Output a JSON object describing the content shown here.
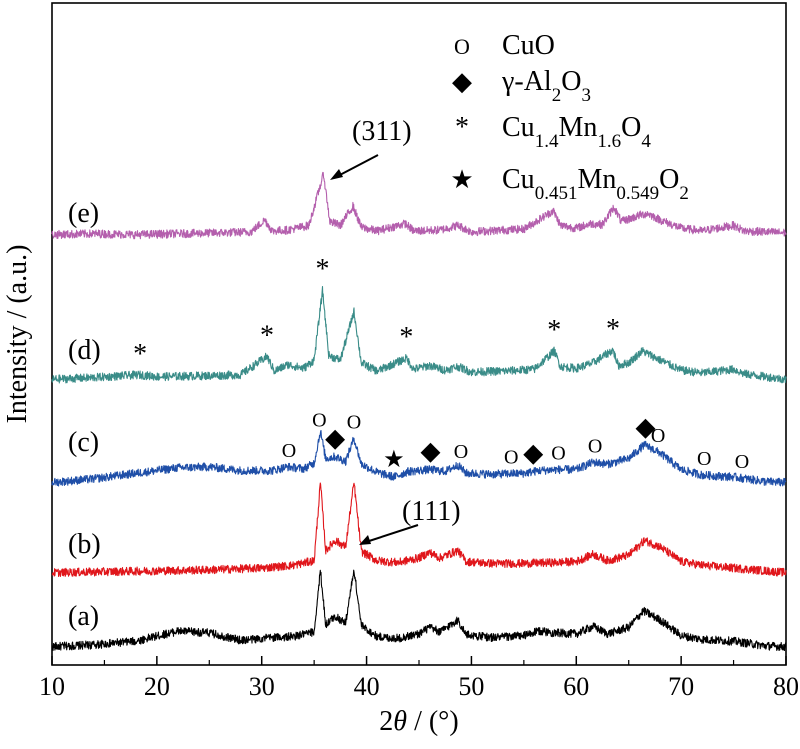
{
  "chart_data": {
    "type": "line",
    "xlabel": "2θ / (°)",
    "xlabel_parts": [
      "2",
      "θ",
      " / (°)"
    ],
    "ylabel": "Intensity / (a.u.)",
    "xlim": [
      10,
      80
    ],
    "x_ticks": [
      10,
      20,
      30,
      40,
      50,
      60,
      70,
      80
    ],
    "x_tick_labels": [
      "10",
      "20",
      "30",
      "40",
      "50",
      "60",
      "70",
      "80"
    ],
    "y_ticks_shown": false,
    "grid": false,
    "legend_position": "top-right",
    "colors": {
      "a": "#000000",
      "b": "#e0161b",
      "c": "#1f4fa8",
      "d": "#3a8c88",
      "e": "#b45fad"
    },
    "series": [
      {
        "name": "(a)",
        "baseline": 0.0,
        "points": [
          [
            10,
            0.9
          ],
          [
            14,
            1.1
          ],
          [
            18,
            1.5
          ],
          [
            22,
            2.6
          ],
          [
            25,
            2.4
          ],
          [
            28,
            1.6
          ],
          [
            31,
            1.9
          ],
          [
            33,
            2.0
          ],
          [
            35,
            2.5
          ],
          [
            35.6,
            9.2
          ],
          [
            36.1,
            3.3
          ],
          [
            37,
            4.2
          ],
          [
            38,
            3.5
          ],
          [
            38.8,
            9.3
          ],
          [
            39.5,
            3.2
          ],
          [
            41,
            2.0
          ],
          [
            43,
            1.8
          ],
          [
            45,
            2.3
          ],
          [
            46,
            3.0
          ],
          [
            47,
            2.5
          ],
          [
            48.7,
            3.8
          ],
          [
            49.5,
            2.2
          ],
          [
            52,
            1.9
          ],
          [
            55,
            2.1
          ],
          [
            56.5,
            2.6
          ],
          [
            58,
            2.4
          ],
          [
            60,
            2.3
          ],
          [
            61.6,
            3.1
          ],
          [
            63,
            2.3
          ],
          [
            65,
            3.0
          ],
          [
            66.4,
            4.8
          ],
          [
            68,
            3.8
          ],
          [
            70,
            2.1
          ],
          [
            72,
            1.7
          ],
          [
            75,
            1.5
          ],
          [
            78,
            1.0
          ],
          [
            80,
            0.9
          ]
        ]
      },
      {
        "name": "(b)",
        "baseline": 0.0,
        "points": [
          [
            10,
            0.8
          ],
          [
            20,
            1.0
          ],
          [
            25,
            1.1
          ],
          [
            30,
            1.3
          ],
          [
            33,
            1.6
          ],
          [
            35,
            2.1
          ],
          [
            35.6,
            10.6
          ],
          [
            36.1,
            3.2
          ],
          [
            37,
            4.3
          ],
          [
            38,
            3.6
          ],
          [
            38.8,
            10.6
          ],
          [
            39.5,
            3.1
          ],
          [
            41,
            2.1
          ],
          [
            43,
            1.9
          ],
          [
            45,
            2.4
          ],
          [
            46,
            3.0
          ],
          [
            47,
            2.4
          ],
          [
            48.7,
            3.2
          ],
          [
            49.5,
            2.0
          ],
          [
            52,
            1.8
          ],
          [
            55,
            1.8
          ],
          [
            58,
            1.9
          ],
          [
            60,
            2.0
          ],
          [
            61.6,
            2.8
          ],
          [
            63,
            2.1
          ],
          [
            65,
            2.7
          ],
          [
            66.5,
            4.3
          ],
          [
            68,
            3.6
          ],
          [
            70,
            2.0
          ],
          [
            72,
            1.6
          ],
          [
            75,
            1.3
          ],
          [
            78,
            1.0
          ],
          [
            80,
            0.8
          ]
        ]
      },
      {
        "name": "(c)",
        "baseline": 0.0,
        "points": [
          [
            10,
            0.6
          ],
          [
            14,
            1.0
          ],
          [
            18,
            1.6
          ],
          [
            22,
            2.2
          ],
          [
            25,
            2.3
          ],
          [
            28,
            1.9
          ],
          [
            31,
            1.9
          ],
          [
            32.5,
            2.3
          ],
          [
            34,
            2.1
          ],
          [
            35,
            2.7
          ],
          [
            35.6,
            6.2
          ],
          [
            36.1,
            3.2
          ],
          [
            37,
            3.4
          ],
          [
            38,
            2.9
          ],
          [
            38.8,
            5.4
          ],
          [
            39.5,
            2.6
          ],
          [
            41,
            1.7
          ],
          [
            42.6,
            1.2
          ],
          [
            44,
            1.8
          ],
          [
            46,
            2.0
          ],
          [
            47.5,
            1.8
          ],
          [
            48.7,
            2.5
          ],
          [
            49.5,
            1.6
          ],
          [
            52,
            1.5
          ],
          [
            55,
            1.6
          ],
          [
            56.5,
            1.9
          ],
          [
            58.2,
            2.0
          ],
          [
            60,
            2.0
          ],
          [
            61.6,
            2.8
          ],
          [
            63,
            2.6
          ],
          [
            65,
            3.2
          ],
          [
            66.5,
            4.7
          ],
          [
            68,
            3.8
          ],
          [
            70,
            2.0
          ],
          [
            72,
            1.4
          ],
          [
            75,
            1.2
          ],
          [
            78,
            0.7
          ],
          [
            80,
            0.6
          ]
        ]
      },
      {
        "name": "(d)",
        "baseline": 0.0,
        "points": [
          [
            10,
            0.5
          ],
          [
            14,
            0.7
          ],
          [
            18.3,
            1.0
          ],
          [
            20,
            0.8
          ],
          [
            25,
            0.9
          ],
          [
            28,
            1.0
          ],
          [
            30.5,
            3.0
          ],
          [
            31.2,
            1.4
          ],
          [
            32.5,
            2.1
          ],
          [
            34,
            1.7
          ],
          [
            35,
            2.6
          ],
          [
            35.8,
            10.2
          ],
          [
            36.4,
            3.1
          ],
          [
            37.5,
            2.6
          ],
          [
            38.8,
            7.9
          ],
          [
            39.5,
            2.3
          ],
          [
            41,
            1.4
          ],
          [
            43.8,
            2.8
          ],
          [
            44.5,
            1.6
          ],
          [
            46,
            2.0
          ],
          [
            47.5,
            1.5
          ],
          [
            48.7,
            1.9
          ],
          [
            50,
            1.3
          ],
          [
            53,
            1.4
          ],
          [
            56,
            1.6
          ],
          [
            57.9,
            3.6
          ],
          [
            58.5,
            1.9
          ],
          [
            60,
            1.7
          ],
          [
            61.6,
            2.3
          ],
          [
            63.5,
            3.7
          ],
          [
            64,
            2.0
          ],
          [
            65,
            2.3
          ],
          [
            66.3,
            3.6
          ],
          [
            68,
            2.6
          ],
          [
            70,
            1.5
          ],
          [
            72,
            1.2
          ],
          [
            75,
            1.6
          ],
          [
            76,
            1.1
          ],
          [
            80,
            0.5
          ]
        ]
      },
      {
        "name": "(e)",
        "baseline": 0.0,
        "points": [
          [
            10,
            0.8
          ],
          [
            14,
            0.9
          ],
          [
            18,
            0.8
          ],
          [
            22,
            0.9
          ],
          [
            26,
            1.0
          ],
          [
            29,
            1.1
          ],
          [
            30.3,
            2.4
          ],
          [
            31,
            1.2
          ],
          [
            32.5,
            1.3
          ],
          [
            34.5,
            1.8
          ],
          [
            35.9,
            7.4
          ],
          [
            36.5,
            2.2
          ],
          [
            37.5,
            1.8
          ],
          [
            38.7,
            3.9
          ],
          [
            39.5,
            1.6
          ],
          [
            41,
            1.2
          ],
          [
            43.7,
            2.0
          ],
          [
            44.5,
            1.2
          ],
          [
            47,
            1.3
          ],
          [
            48.7,
            1.8
          ],
          [
            50,
            1.1
          ],
          [
            53,
            1.3
          ],
          [
            55,
            1.4
          ],
          [
            57.8,
            3.4
          ],
          [
            58.5,
            1.8
          ],
          [
            60,
            1.5
          ],
          [
            61.4,
            2.0
          ],
          [
            62.5,
            1.9
          ],
          [
            63.6,
            3.8
          ],
          [
            64.3,
            2.2
          ],
          [
            66,
            2.9
          ],
          [
            66.8,
            3.1
          ],
          [
            68,
            2.4
          ],
          [
            70,
            1.5
          ],
          [
            72,
            1.2
          ],
          [
            75,
            1.8
          ],
          [
            76,
            1.2
          ],
          [
            80,
            1.0
          ]
        ]
      }
    ],
    "legend": [
      {
        "symbol": "O",
        "marker": "circle",
        "label": "CuO"
      },
      {
        "symbol": "◆",
        "marker": "diamond",
        "label": "γ-Al2O3"
      },
      {
        "symbol": "*",
        "marker": "asterisk",
        "label": "Cu1.4Mn1.6O4"
      },
      {
        "symbol": "★",
        "marker": "star",
        "label": "Cu0.451Mn0.549O2"
      }
    ],
    "annotations": [
      {
        "text": "(311)",
        "series": "(e)",
        "x": 35.9
      },
      {
        "text": "(111)",
        "series": "(b)",
        "x": 38.8
      }
    ],
    "phase_markers": [
      {
        "series": "(d)",
        "marker": "asterisk",
        "x": [
          18.4,
          30.5,
          35.8,
          43.8,
          57.9,
          63.5
        ]
      },
      {
        "series": "(c)",
        "marker": "circle",
        "x": [
          32.6,
          35.5,
          38.8,
          49.0,
          53.8,
          58.3,
          61.8,
          67.8,
          72.2,
          75.8
        ]
      },
      {
        "series": "(c)",
        "marker": "diamond",
        "x": [
          37.0,
          46.1,
          55.9,
          66.6
        ]
      },
      {
        "series": "(c)",
        "marker": "star",
        "x": [
          42.6
        ]
      }
    ]
  }
}
